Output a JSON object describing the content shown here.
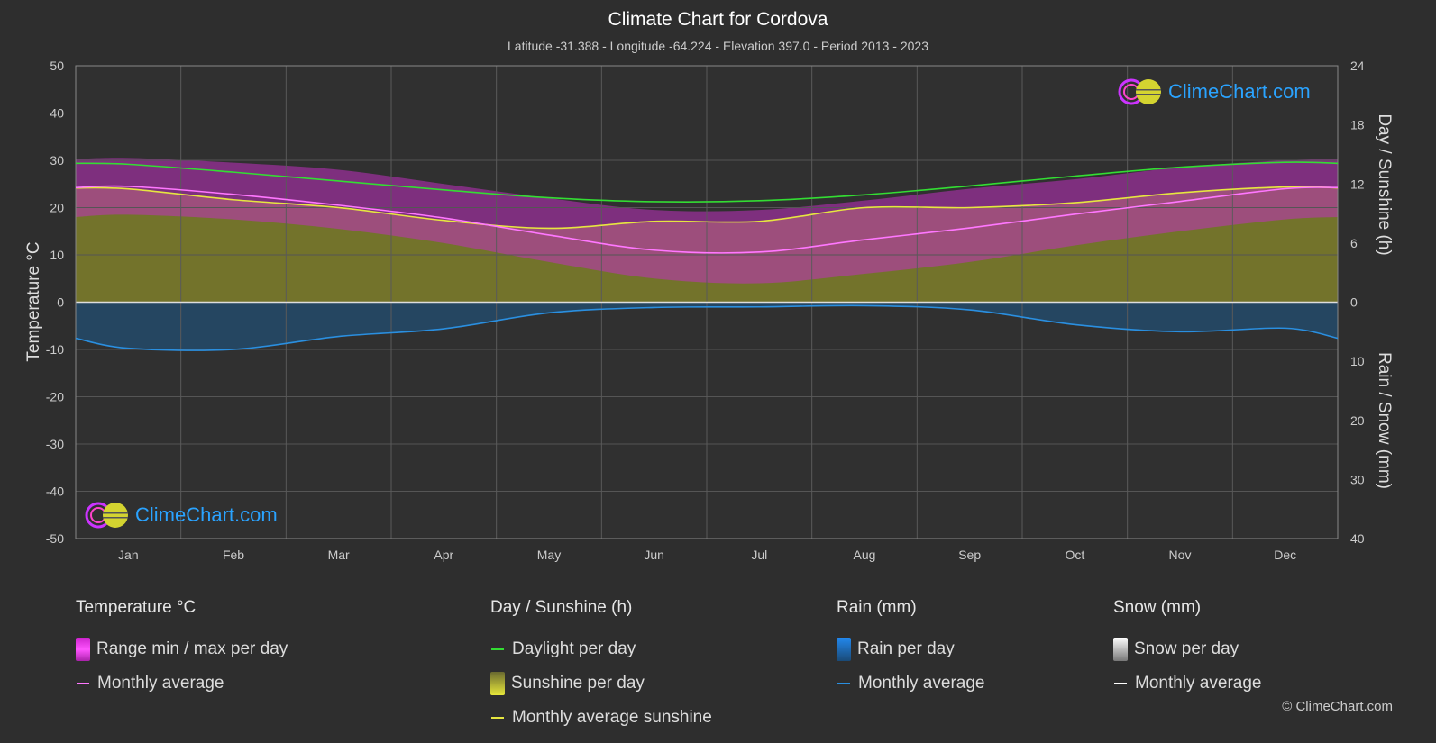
{
  "header": {
    "title": "Climate Chart for Cordova",
    "subtitle": "Latitude -31.388 - Longitude -64.224 - Elevation 397.0 - Period 2013 - 2023"
  },
  "logo": {
    "text": "ClimeChart.com"
  },
  "copyright": "© ClimeChart.com",
  "axes": {
    "left_label": "Temperature °C",
    "right_top_label": "Day / Sunshine (h)",
    "right_bottom_label": "Rain / Snow (mm)",
    "left_ticks": [
      "50",
      "40",
      "30",
      "20",
      "10",
      "0",
      "-10",
      "-20",
      "-30",
      "-40",
      "-50"
    ],
    "right_top_ticks": [
      "24",
      "18",
      "12",
      "6",
      "0"
    ],
    "right_bottom_ticks": [
      "10",
      "20",
      "30",
      "40"
    ]
  },
  "legend": {
    "temperature": {
      "header": "Temperature °C",
      "range": "Range min / max per day",
      "avg": "Monthly average"
    },
    "sunshine": {
      "header": "Day / Sunshine (h)",
      "daylight": "Daylight per day",
      "sunshine": "Sunshine per day",
      "avg": "Monthly average sunshine"
    },
    "rain": {
      "header": "Rain (mm)",
      "per_day": "Rain per day",
      "avg": "Monthly average"
    },
    "snow": {
      "header": "Snow (mm)",
      "per_day": "Snow per day",
      "avg": "Monthly average"
    }
  },
  "colors": {
    "background": "#2e2e2e",
    "daylight": "#33dd33",
    "sunshine_avg": "#e6e640",
    "temp_avg": "#ff77ff",
    "rain_avg": "#2a8fe0",
    "snow_avg": "#ffffff",
    "temp_band": "#c030c0",
    "sun_fill": "#8a8a2a",
    "rain_fill": "#1e5a8a"
  },
  "chart_data": {
    "type": "line",
    "categories": [
      "Jan",
      "Feb",
      "Mar",
      "Apr",
      "May",
      "Jun",
      "Jul",
      "Aug",
      "Sep",
      "Oct",
      "Nov",
      "Dec"
    ],
    "temp_ylim": [
      -50,
      50
    ],
    "sun_ylim": [
      0,
      24
    ],
    "rain_ylim": [
      0,
      40
    ],
    "grid": true,
    "series": [
      {
        "name": "Daylight per day",
        "axis": "sun",
        "values": [
          14.0,
          13.2,
          12.3,
          11.4,
          10.6,
          10.2,
          10.3,
          10.9,
          11.8,
          12.8,
          13.7,
          14.2
        ]
      },
      {
        "name": "Monthly average sunshine",
        "axis": "sun",
        "values": [
          11.5,
          10.4,
          9.6,
          8.3,
          7.5,
          8.2,
          8.2,
          9.6,
          9.6,
          10.1,
          11.1,
          11.7
        ]
      },
      {
        "name": "Temperature monthly average",
        "axis": "temp",
        "values": [
          24.5,
          22.8,
          20.5,
          17.8,
          14.2,
          11.0,
          10.6,
          13.2,
          15.7,
          18.6,
          21.3,
          24.0
        ]
      },
      {
        "name": "Temperature max average",
        "axis": "temp",
        "values": [
          30.5,
          29.5,
          28.0,
          25.0,
          22.0,
          19.5,
          19.5,
          21.5,
          24.0,
          26.0,
          28.5,
          30.0
        ]
      },
      {
        "name": "Temperature min average",
        "axis": "temp",
        "values": [
          18.5,
          17.5,
          15.5,
          12.5,
          8.5,
          5.0,
          4.0,
          6.0,
          8.5,
          12.0,
          15.0,
          17.5
        ]
      },
      {
        "name": "Rain monthly average",
        "axis": "rain",
        "values": [
          7.8,
          8.0,
          5.8,
          4.5,
          1.8,
          0.9,
          0.8,
          0.6,
          1.3,
          3.8,
          5.0,
          4.4
        ]
      }
    ]
  }
}
